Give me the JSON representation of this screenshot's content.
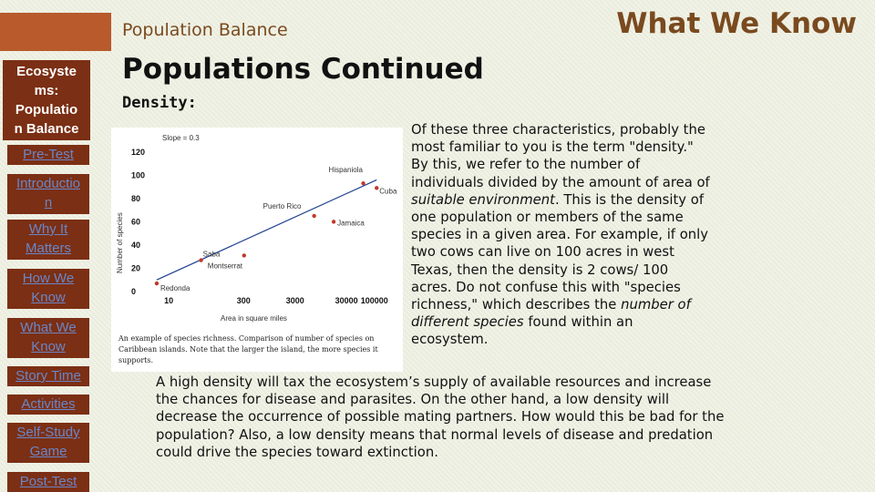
{
  "header": {
    "section_title": "Population Balance",
    "corner_title": "What We Know"
  },
  "sidebar": {
    "title": "Ecosystems: Population Balance",
    "title_lines": [
      "Ecosyste",
      "ms:",
      "Populatio",
      "n Balance"
    ],
    "items": [
      {
        "label": "Pre-Test",
        "lines": [
          "Pre-Test"
        ]
      },
      {
        "label": "Introduction",
        "lines": [
          "Introductio",
          "n"
        ]
      },
      {
        "label": "Why It Matters",
        "lines": [
          "Why It",
          "Matters"
        ]
      },
      {
        "label": "How We Know",
        "lines": [
          "How We",
          "Know"
        ]
      },
      {
        "label": "What We Know",
        "lines": [
          "What We",
          "Know"
        ]
      },
      {
        "label": "Story Time",
        "lines": [
          "Story Time"
        ]
      },
      {
        "label": "Activities",
        "lines": [
          "Activities"
        ]
      },
      {
        "label": "Self-Study Game",
        "lines": [
          "Self-Study",
          "Game"
        ]
      },
      {
        "label": "Post-Test",
        "lines": [
          "Post-Test"
        ]
      }
    ]
  },
  "main": {
    "title": "Populations Continued",
    "subtitle": "Density:",
    "side_paragraph_parts": [
      {
        "text": "Of these three characteristics, probably the most familiar to you is the term \"density.\"  By this, we refer to the number of individuals divided by the amount of area of ",
        "italic": false
      },
      {
        "text": "suitable environment",
        "italic": true
      },
      {
        "text": ".  This is the density of one population or members of the same species in a given area.  For example, if only two cows can live on 100 acres in west Texas, then the density is 2 cows/ 100 acres.  Do not confuse this with \"species richness,\" which describes the ",
        "italic": false
      },
      {
        "text": "number of different species",
        "italic": true
      },
      {
        "text": " found within an ecosystem.",
        "italic": false
      }
    ],
    "bottom_paragraph": "A high density will tax the ecosystem’s supply of available resources and increase the chances for disease and parasites. On the other hand, a low density will decrease the occurrence of possible mating partners. How would this be bad for the population? Also, a low density means that normal levels of disease and predation could drive the species toward extinction."
  },
  "figure": {
    "caption": "An example of species richness.  Comparison of number of species on Caribbean islands. Note that the larger the island, the more species it supports."
  },
  "chart_data": {
    "type": "scatter",
    "title": "Slope = 0.3",
    "xlabel": "Area in square miles",
    "ylabel": "Number of species",
    "x_ticks": [
      "10",
      "300",
      "3000",
      "30000",
      "100000"
    ],
    "y_ticks": [
      "0",
      "20",
      "40",
      "60",
      "80",
      "100",
      "120"
    ],
    "points": [
      {
        "label": "Redonda",
        "x": 5,
        "y": 7
      },
      {
        "label": "Saba",
        "x": 40,
        "y": 27
      },
      {
        "label": "Montserrat",
        "x": 300,
        "y": 31
      },
      {
        "label": "Puerto Rico",
        "x": 8000,
        "y": 65
      },
      {
        "label": "Jamaica",
        "x": 20000,
        "y": 60
      },
      {
        "label": "Hispaniola",
        "x": 80000,
        "y": 93
      },
      {
        "label": "Cuba",
        "x": 150000,
        "y": 89
      }
    ],
    "line": [
      {
        "x": 5,
        "y": 10
      },
      {
        "x": 150000,
        "y": 96
      }
    ],
    "colors": {
      "points": "#c0392b",
      "line": "#1f3f8f"
    }
  }
}
